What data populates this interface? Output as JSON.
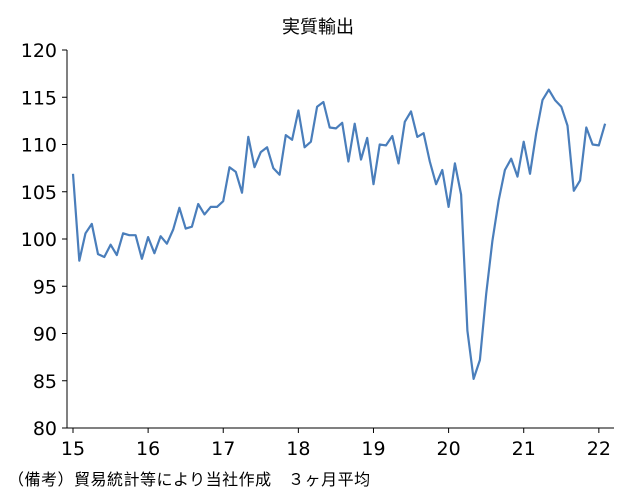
{
  "chart_data": {
    "type": "line",
    "title": "実質輸出",
    "xlabel": "",
    "ylabel": "",
    "ylim": [
      80,
      120
    ],
    "yticks": [
      80,
      85,
      90,
      95,
      100,
      105,
      110,
      115,
      120
    ],
    "xticks": [
      "15",
      "16",
      "17",
      "18",
      "19",
      "20",
      "21",
      "22"
    ],
    "grid": false,
    "line_color": "#4a7ebb",
    "series": [
      {
        "values": [
          106.9,
          97.7,
          100.6,
          101.6,
          98.4,
          98.1,
          99.4,
          98.3,
          100.6,
          100.4,
          100.4,
          97.9,
          100.2,
          98.5,
          100.3,
          99.5,
          101.0,
          103.3,
          101.1,
          101.3,
          103.7,
          102.6,
          103.4,
          103.4,
          104.0,
          107.6,
          107.1,
          104.9,
          110.8,
          107.6,
          109.2,
          109.7,
          107.5,
          106.8,
          111.0,
          110.5,
          113.6,
          109.7,
          110.3,
          114.0,
          114.5,
          111.8,
          111.7,
          112.3,
          108.2,
          112.2,
          108.4,
          110.7,
          105.8,
          110.0,
          109.9,
          110.9,
          108.0,
          112.4,
          113.5,
          110.8,
          111.2,
          108.2,
          105.8,
          107.3,
          103.4,
          108.0,
          104.7,
          90.3,
          85.2,
          87.2,
          94.2,
          99.8,
          104.1,
          107.3,
          108.5,
          106.6,
          110.3,
          106.9,
          111.2,
          114.7,
          115.8,
          114.7,
          114.0,
          112.0,
          105.1,
          106.2,
          111.8,
          110.0,
          109.9,
          112.2
        ]
      }
    ]
  },
  "note": "（備考）貿易統計等により当社作成　３ヶ月平均"
}
